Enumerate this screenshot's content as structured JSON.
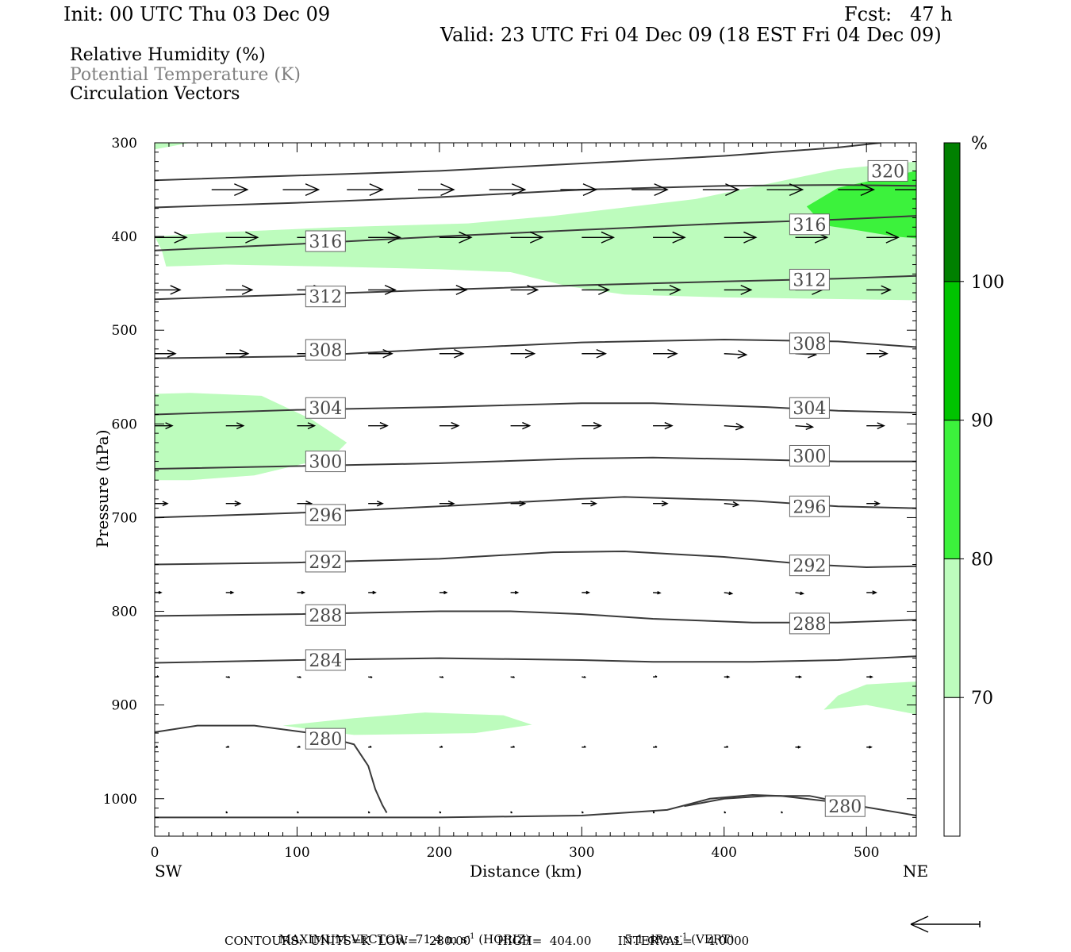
{
  "header": {
    "init": "Init: 00 UTC Thu 03 Dec 09",
    "fcst": "Fcst:   47 h",
    "valid": "Valid: 23 UTC Fri 04 Dec 09 (18 EST Fri 04 Dec 09)"
  },
  "fields": {
    "rh": "Relative Humidity (%)",
    "theta": "Potential Temperature (K)",
    "vectors": "Circulation Vectors"
  },
  "colors": {
    "rh70": "#bdfcbd",
    "rh80": "#3cf23c",
    "rh90": "#00c400",
    "rh100": "#008000",
    "theta": "#3a3a3a",
    "theta_label": "#4a4a4a",
    "legend_gray": "#808080"
  },
  "footer": {
    "max_vector": "MAXIMUM VECTOR:  71.4 m s",
    "max_vector_sup": "-1",
    "horiz": " (HORIZ)",
    "vert_val": "5.1 dPa s",
    "vert_sup": "-1",
    "vert": " (VERT)",
    "contours": "CONTOURS:  UNITS=K  LOW=   280.00       HIGH=  404.00       INTERVAL=    4.0000"
  },
  "chart_data": {
    "type": "cross-section",
    "xlabel": "Distance (km)",
    "ylabel": "Pressure (hPa)",
    "xlim": [
      0,
      535
    ],
    "ylim": [
      1040,
      300
    ],
    "x_ticks": [
      0,
      100,
      200,
      300,
      400,
      500
    ],
    "y_ticks": [
      300,
      400,
      500,
      600,
      700,
      800,
      900,
      1000
    ],
    "endpoint_left": "SW",
    "endpoint_right": "NE",
    "colorbar": {
      "unit": "%",
      "levels": [
        70,
        80,
        90,
        100
      ],
      "colors": [
        "#ffffff",
        "#bdfcbd",
        "#3cf23c",
        "#00c400",
        "#008000"
      ]
    },
    "rh_regions": [
      {
        "level": 70,
        "points": [
          [
            0,
            300
          ],
          [
            25,
            300
          ],
          [
            0,
            307
          ]
        ]
      },
      {
        "level": 70,
        "points": [
          [
            0,
            400
          ],
          [
            40,
            396
          ],
          [
            130,
            390
          ],
          [
            220,
            386
          ],
          [
            280,
            378
          ],
          [
            380,
            360
          ],
          [
            480,
            328
          ],
          [
            535,
            320
          ],
          [
            535,
            468
          ],
          [
            400,
            465
          ],
          [
            330,
            462
          ],
          [
            290,
            453
          ],
          [
            250,
            438
          ],
          [
            200,
            435
          ],
          [
            120,
            432
          ],
          [
            50,
            430
          ],
          [
            8,
            432
          ],
          [
            5,
            415
          ]
        ]
      },
      {
        "level": 80,
        "points": [
          [
            480,
            348
          ],
          [
            520,
            335
          ],
          [
            535,
            330
          ],
          [
            535,
            402
          ],
          [
            520,
            400
          ],
          [
            492,
            393
          ],
          [
            470,
            388
          ],
          [
            458,
            368
          ]
        ]
      },
      {
        "level": 70,
        "points": [
          [
            0,
            568
          ],
          [
            25,
            567
          ],
          [
            75,
            570
          ],
          [
            110,
            595
          ],
          [
            135,
            620
          ],
          [
            125,
            635
          ],
          [
            70,
            655
          ],
          [
            25,
            660
          ],
          [
            0,
            660
          ]
        ]
      },
      {
        "level": 70,
        "points": [
          [
            470,
            905
          ],
          [
            480,
            890
          ],
          [
            500,
            878
          ],
          [
            535,
            875
          ],
          [
            535,
            910
          ],
          [
            500,
            900
          ]
        ]
      },
      {
        "level": 70,
        "points": [
          [
            90,
            922
          ],
          [
            140,
            914
          ],
          [
            190,
            908
          ],
          [
            245,
            911
          ],
          [
            265,
            921
          ],
          [
            225,
            930
          ],
          [
            140,
            932
          ]
        ]
      }
    ],
    "theta_lines": [
      {
        "value": 320,
        "points": [
          [
            0,
            340
          ],
          [
            100,
            335
          ],
          [
            200,
            330
          ],
          [
            300,
            322
          ],
          [
            400,
            314
          ],
          [
            480,
            305
          ],
          [
            510,
            300
          ]
        ],
        "labels": [
          [
            515,
            330
          ]
        ]
      },
      {
        "value": 316,
        "points": [
          [
            0,
            415
          ],
          [
            100,
            408
          ],
          [
            200,
            400
          ],
          [
            300,
            393
          ],
          [
            400,
            386
          ],
          [
            480,
            382
          ],
          [
            535,
            378
          ]
        ],
        "labels": [
          [
            120,
            405
          ],
          [
            460,
            387
          ]
        ]
      },
      {
        "value": 316,
        "points": [
          [
            0,
            369
          ],
          [
            100,
            364
          ],
          [
            200,
            358
          ],
          [
            300,
            350
          ],
          [
            400,
            346
          ],
          [
            480,
            345
          ],
          [
            535,
            346
          ]
        ],
        "labels": []
      },
      {
        "value": 312,
        "points": [
          [
            0,
            467
          ],
          [
            100,
            462
          ],
          [
            200,
            457
          ],
          [
            300,
            452
          ],
          [
            400,
            448
          ],
          [
            480,
            445
          ],
          [
            535,
            442
          ]
        ],
        "labels": [
          [
            120,
            464
          ],
          [
            460,
            446
          ]
        ]
      },
      {
        "value": 308,
        "points": [
          [
            0,
            530
          ],
          [
            100,
            528
          ],
          [
            200,
            520
          ],
          [
            300,
            513
          ],
          [
            400,
            510
          ],
          [
            480,
            512
          ],
          [
            535,
            518
          ]
        ],
        "labels": [
          [
            120,
            521
          ],
          [
            460,
            514
          ]
        ]
      },
      {
        "value": 304,
        "points": [
          [
            0,
            590
          ],
          [
            100,
            585
          ],
          [
            200,
            582
          ],
          [
            300,
            578
          ],
          [
            350,
            578
          ],
          [
            430,
            582
          ],
          [
            480,
            586
          ],
          [
            535,
            588
          ]
        ],
        "labels": [
          [
            120,
            583
          ],
          [
            460,
            583
          ]
        ]
      },
      {
        "value": 300,
        "points": [
          [
            0,
            648
          ],
          [
            100,
            645
          ],
          [
            200,
            642
          ],
          [
            300,
            637
          ],
          [
            350,
            636
          ],
          [
            420,
            638
          ],
          [
            480,
            640
          ],
          [
            535,
            640
          ]
        ],
        "labels": [
          [
            120,
            640
          ],
          [
            460,
            634
          ]
        ]
      },
      {
        "value": 296,
        "points": [
          [
            0,
            700
          ],
          [
            100,
            695
          ],
          [
            200,
            688
          ],
          [
            300,
            680
          ],
          [
            330,
            678
          ],
          [
            420,
            682
          ],
          [
            480,
            688
          ],
          [
            535,
            690
          ]
        ],
        "labels": [
          [
            120,
            697
          ],
          [
            460,
            688
          ]
        ]
      },
      {
        "value": 292,
        "points": [
          [
            0,
            750
          ],
          [
            100,
            748
          ],
          [
            200,
            744
          ],
          [
            280,
            737
          ],
          [
            330,
            736
          ],
          [
            400,
            742
          ],
          [
            460,
            750
          ],
          [
            500,
            753
          ],
          [
            535,
            752
          ]
        ],
        "labels": [
          [
            120,
            747
          ],
          [
            460,
            751
          ]
        ]
      },
      {
        "value": 288,
        "points": [
          [
            0,
            805
          ],
          [
            100,
            803
          ],
          [
            200,
            800
          ],
          [
            250,
            800
          ],
          [
            300,
            803
          ],
          [
            350,
            808
          ],
          [
            420,
            812
          ],
          [
            480,
            812
          ],
          [
            535,
            809
          ]
        ],
        "labels": [
          [
            120,
            804
          ],
          [
            460,
            813
          ]
        ]
      },
      {
        "value": 284,
        "points": [
          [
            0,
            855
          ],
          [
            100,
            852
          ],
          [
            200,
            850
          ],
          [
            300,
            852
          ],
          [
            350,
            854
          ],
          [
            420,
            854
          ],
          [
            480,
            852
          ],
          [
            535,
            848
          ]
        ],
        "labels": [
          [
            120,
            852
          ]
        ]
      },
      {
        "value": 280,
        "points": [
          [
            0,
            929
          ],
          [
            30,
            922
          ],
          [
            70,
            922
          ],
          [
            110,
            930
          ],
          [
            140,
            942
          ],
          [
            150,
            965
          ],
          [
            155,
            990
          ],
          [
            160,
            1007
          ],
          [
            163,
            1015
          ]
        ],
        "labels": [
          [
            120,
            936
          ]
        ]
      },
      {
        "value": 280,
        "points": [
          [
            0,
            1020
          ],
          [
            100,
            1020
          ],
          [
            200,
            1020
          ],
          [
            300,
            1018
          ],
          [
            360,
            1012
          ],
          [
            390,
            1000
          ],
          [
            420,
            996
          ],
          [
            440,
            997
          ],
          [
            480,
            1004
          ],
          [
            535,
            1018
          ]
        ],
        "labels": []
      },
      {
        "value": 280,
        "points": [
          [
            372,
            1008
          ],
          [
            400,
            1000
          ],
          [
            430,
            997
          ],
          [
            460,
            997
          ],
          [
            480,
            1003
          ]
        ],
        "labels": [
          [
            485,
            1008
          ]
        ]
      }
    ],
    "vector_rows": [
      {
        "p": 350,
        "x": [
          40,
          90,
          135,
          185,
          235,
          285,
          335,
          385,
          430,
          480,
          520
        ],
        "len": [
          45,
          45,
          45,
          45,
          45,
          45,
          45,
          45,
          45,
          45,
          45
        ],
        "ang": [
          0,
          0,
          0,
          0,
          0,
          0,
          0,
          0,
          0,
          0,
          0
        ]
      },
      {
        "p": 401,
        "x": [
          0,
          50,
          100,
          150,
          200,
          250,
          300,
          350,
          400,
          450,
          500
        ],
        "len": [
          40,
          40,
          40,
          40,
          40,
          40,
          40,
          40,
          40,
          40,
          40
        ],
        "ang": [
          0,
          0,
          0,
          0,
          0,
          0,
          0,
          0,
          0,
          0,
          0
        ]
      },
      {
        "p": 457,
        "x": [
          0,
          50,
          100,
          150,
          200,
          250,
          300,
          350,
          400,
          450,
          500
        ],
        "len": [
          32,
          33,
          34,
          34,
          34,
          34,
          34,
          34,
          34,
          34,
          30
        ],
        "ang": [
          0,
          0,
          0,
          0,
          0,
          0,
          0,
          0,
          0,
          0,
          0
        ]
      },
      {
        "p": 525,
        "x": [
          0,
          50,
          100,
          150,
          200,
          250,
          300,
          350,
          400,
          450,
          500
        ],
        "len": [
          26,
          28,
          30,
          30,
          30,
          30,
          30,
          30,
          28,
          26,
          26
        ],
        "ang": [
          0,
          0,
          0,
          0,
          0,
          0,
          0,
          0,
          3,
          3,
          0
        ]
      },
      {
        "p": 602,
        "x": [
          0,
          50,
          100,
          150,
          200,
          250,
          300,
          350,
          400,
          450,
          500
        ],
        "len": [
          22,
          22,
          22,
          24,
          24,
          24,
          24,
          24,
          24,
          22,
          22
        ],
        "ang": [
          0,
          0,
          0,
          0,
          0,
          0,
          0,
          0,
          4,
          4,
          0
        ]
      },
      {
        "p": 685,
        "x": [
          0,
          50,
          100,
          150,
          200,
          250,
          300,
          350,
          400,
          450,
          500
        ],
        "len": [
          16,
          18,
          18,
          18,
          18,
          18,
          18,
          18,
          18,
          18,
          16
        ],
        "ang": [
          0,
          0,
          0,
          0,
          0,
          0,
          0,
          0,
          5,
          5,
          0
        ]
      },
      {
        "p": 780,
        "x": [
          0,
          50,
          100,
          150,
          200,
          250,
          300,
          350,
          400,
          450,
          500
        ],
        "len": [
          8,
          9,
          9,
          9,
          9,
          9,
          9,
          9,
          10,
          10,
          12
        ],
        "ang": [
          0,
          0,
          0,
          0,
          0,
          0,
          0,
          3,
          8,
          8,
          0
        ]
      },
      {
        "p": 870,
        "x": [
          0,
          50,
          100,
          150,
          200,
          250,
          300,
          350,
          400,
          450,
          500
        ],
        "len": [
          5,
          5,
          5,
          5,
          5,
          5,
          5,
          5,
          6,
          7,
          7
        ],
        "ang": [
          0,
          10,
          10,
          10,
          10,
          10,
          10,
          0,
          0,
          0,
          0
        ]
      },
      {
        "p": 945,
        "x": [
          0,
          50,
          100,
          150,
          200,
          250,
          300,
          350,
          400,
          450,
          500
        ],
        "len": [
          4,
          4,
          4,
          4,
          4,
          5,
          5,
          5,
          5,
          6,
          6
        ],
        "ang": [
          0,
          0,
          0,
          0,
          0,
          0,
          0,
          0,
          0,
          0,
          0
        ]
      },
      {
        "p": 1015,
        "x": [
          50,
          100,
          150,
          200,
          250,
          300,
          350,
          400,
          440
        ],
        "len": [
          2,
          2,
          2,
          2,
          2,
          2,
          2,
          2,
          2
        ],
        "ang": [
          0,
          0,
          0,
          0,
          0,
          0,
          0,
          0,
          0
        ]
      }
    ],
    "reference_vector": "71.4 m s-1 (HORIZ)"
  }
}
